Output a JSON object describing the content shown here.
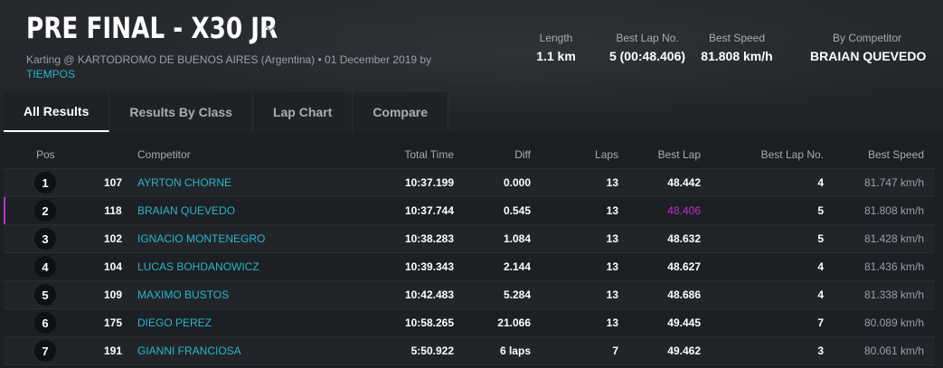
{
  "event": {
    "title": "PRE FINAL - X30 JR",
    "subtitle_text": "Karting @ KARTODROMO DE BUENOS AIRES (Argentina) • 01 December 2019 by",
    "organizer": "TIEMPOS"
  },
  "stats": [
    {
      "label": "Length",
      "value": "1.1 km"
    },
    {
      "label": "Best Lap No.",
      "value": "5 (00:48.406)"
    },
    {
      "label": "Best Speed",
      "value": "81.808 km/h"
    },
    {
      "label": "By Competitor",
      "value": "BRAIAN QUEVEDO"
    }
  ],
  "tabs": [
    "All Results",
    "Results By Class",
    "Lap Chart",
    "Compare"
  ],
  "active_tab": "All Results",
  "table": {
    "headers": [
      "Pos",
      "Competitor",
      "Total Time",
      "Diff",
      "Laps",
      "Best Lap",
      "Best Lap No.",
      "Best Speed"
    ],
    "rows": [
      {
        "pos": "1",
        "no": "107",
        "name": "AYRTON CHORNE",
        "total": "10:37.199",
        "diff": "0.000",
        "laps": "13",
        "best": "48.442",
        "bestno": "4",
        "speed": "81.747 km/h"
      },
      {
        "pos": "2",
        "no": "118",
        "name": "BRAIAN QUEVEDO",
        "total": "10:37.744",
        "diff": "0.545",
        "laps": "13",
        "best": "48.406",
        "bestno": "5",
        "speed": "81.808 km/h"
      },
      {
        "pos": "3",
        "no": "102",
        "name": "IGNACIO MONTENEGRO",
        "total": "10:38.283",
        "diff": "1.084",
        "laps": "13",
        "best": "48.632",
        "bestno": "5",
        "speed": "81.428 km/h"
      },
      {
        "pos": "4",
        "no": "104",
        "name": "LUCAS BOHDANOWICZ",
        "total": "10:39.343",
        "diff": "2.144",
        "laps": "13",
        "best": "48.627",
        "bestno": "4",
        "speed": "81.436 km/h"
      },
      {
        "pos": "5",
        "no": "109",
        "name": "MAXIMO BUSTOS",
        "total": "10:42.483",
        "diff": "5.284",
        "laps": "13",
        "best": "48.686",
        "bestno": "4",
        "speed": "81.338 km/h"
      },
      {
        "pos": "6",
        "no": "175",
        "name": "DIEGO PEREZ",
        "total": "10:58.265",
        "diff": "21.066",
        "laps": "13",
        "best": "49.445",
        "bestno": "7",
        "speed": "80.089 km/h"
      },
      {
        "pos": "7",
        "no": "191",
        "name": "GIANNI FRANCIOSA",
        "total": "5:50.922",
        "diff": "6 laps",
        "laps": "7",
        "best": "49.462",
        "bestno": "3",
        "speed": "80.061 km/h"
      }
    ]
  },
  "colors": {
    "accent": "#29b6c6",
    "best_lap_highlight": "#c22dd0",
    "background": "#1b1e23"
  },
  "icons": {
    "title_dropdown": "chevron-down-icon"
  }
}
